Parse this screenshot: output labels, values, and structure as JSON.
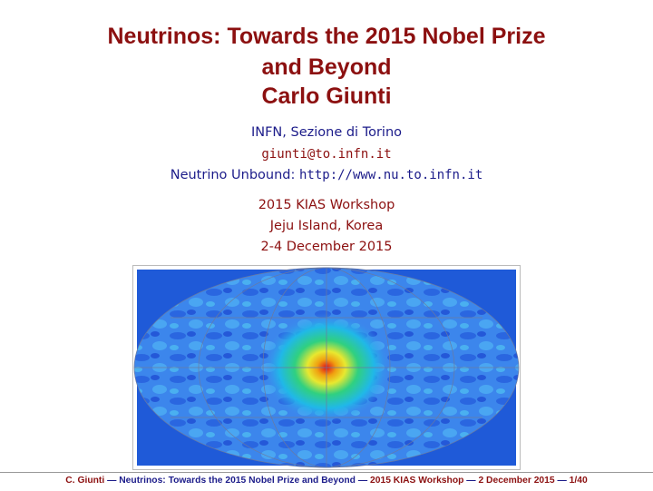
{
  "header": {
    "title_lines": [
      "Neutrinos: Towards the 2015 Nobel Prize",
      "and Beyond"
    ],
    "author": "Carlo Giunti"
  },
  "affiliation": {
    "institute": "INFN, Sezione di Torino",
    "email": "giunti@to.infn.it",
    "website_label": "Neutrino Unbound:",
    "website_url": "http://www.nu.to.infn.it"
  },
  "event": {
    "name": "2015 KIAS Workshop",
    "place": "Jeju Island, Korea",
    "dates": "2-4 December 2015"
  },
  "footer": {
    "author": "C. Giunti",
    "talk": "Neutrinos: Towards the 2015 Nobel Prize and Beyond",
    "event": "2015 KIAS Workshop",
    "date": "2 December 2015",
    "page": "1/40",
    "separator": "—"
  }
}
